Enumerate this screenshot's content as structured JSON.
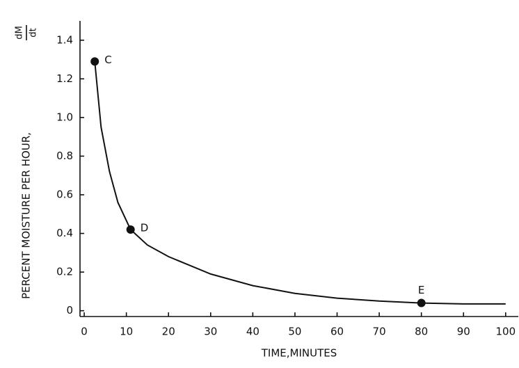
{
  "chart_data": {
    "type": "line",
    "x_label": "TIME,MINUTES",
    "y_label": "PERCENT MOISTURE PER HOUR,",
    "y_label_fraction": {
      "numerator": "dM",
      "denominator": "dt"
    },
    "x": [
      2.5,
      4,
      6,
      8,
      11,
      15,
      20,
      30,
      40,
      50,
      60,
      70,
      80,
      90,
      100
    ],
    "series": [
      {
        "color": "#111111",
        "values": [
          1.29,
          0.95,
          0.72,
          0.56,
          0.42,
          0.34,
          0.28,
          0.19,
          0.13,
          0.09,
          0.065,
          0.05,
          0.04,
          0.035,
          0.035
        ]
      }
    ],
    "points": [
      {
        "label": "C",
        "x": 2.5,
        "y": 1.29
      },
      {
        "label": "D",
        "x": 11,
        "y": 0.42
      },
      {
        "label": "E",
        "x": 80,
        "y": 0.04
      }
    ],
    "xlim": [
      -1,
      103
    ],
    "ylim": [
      -0.03,
      1.5
    ],
    "xticks": [
      0,
      10,
      20,
      30,
      40,
      50,
      60,
      70,
      80,
      90,
      100
    ],
    "yticks": [
      0,
      0.2,
      0.4,
      0.6,
      0.8,
      {
        "value": 1,
        "label": "1.0"
      },
      1.2,
      1.4
    ],
    "grid": false
  }
}
